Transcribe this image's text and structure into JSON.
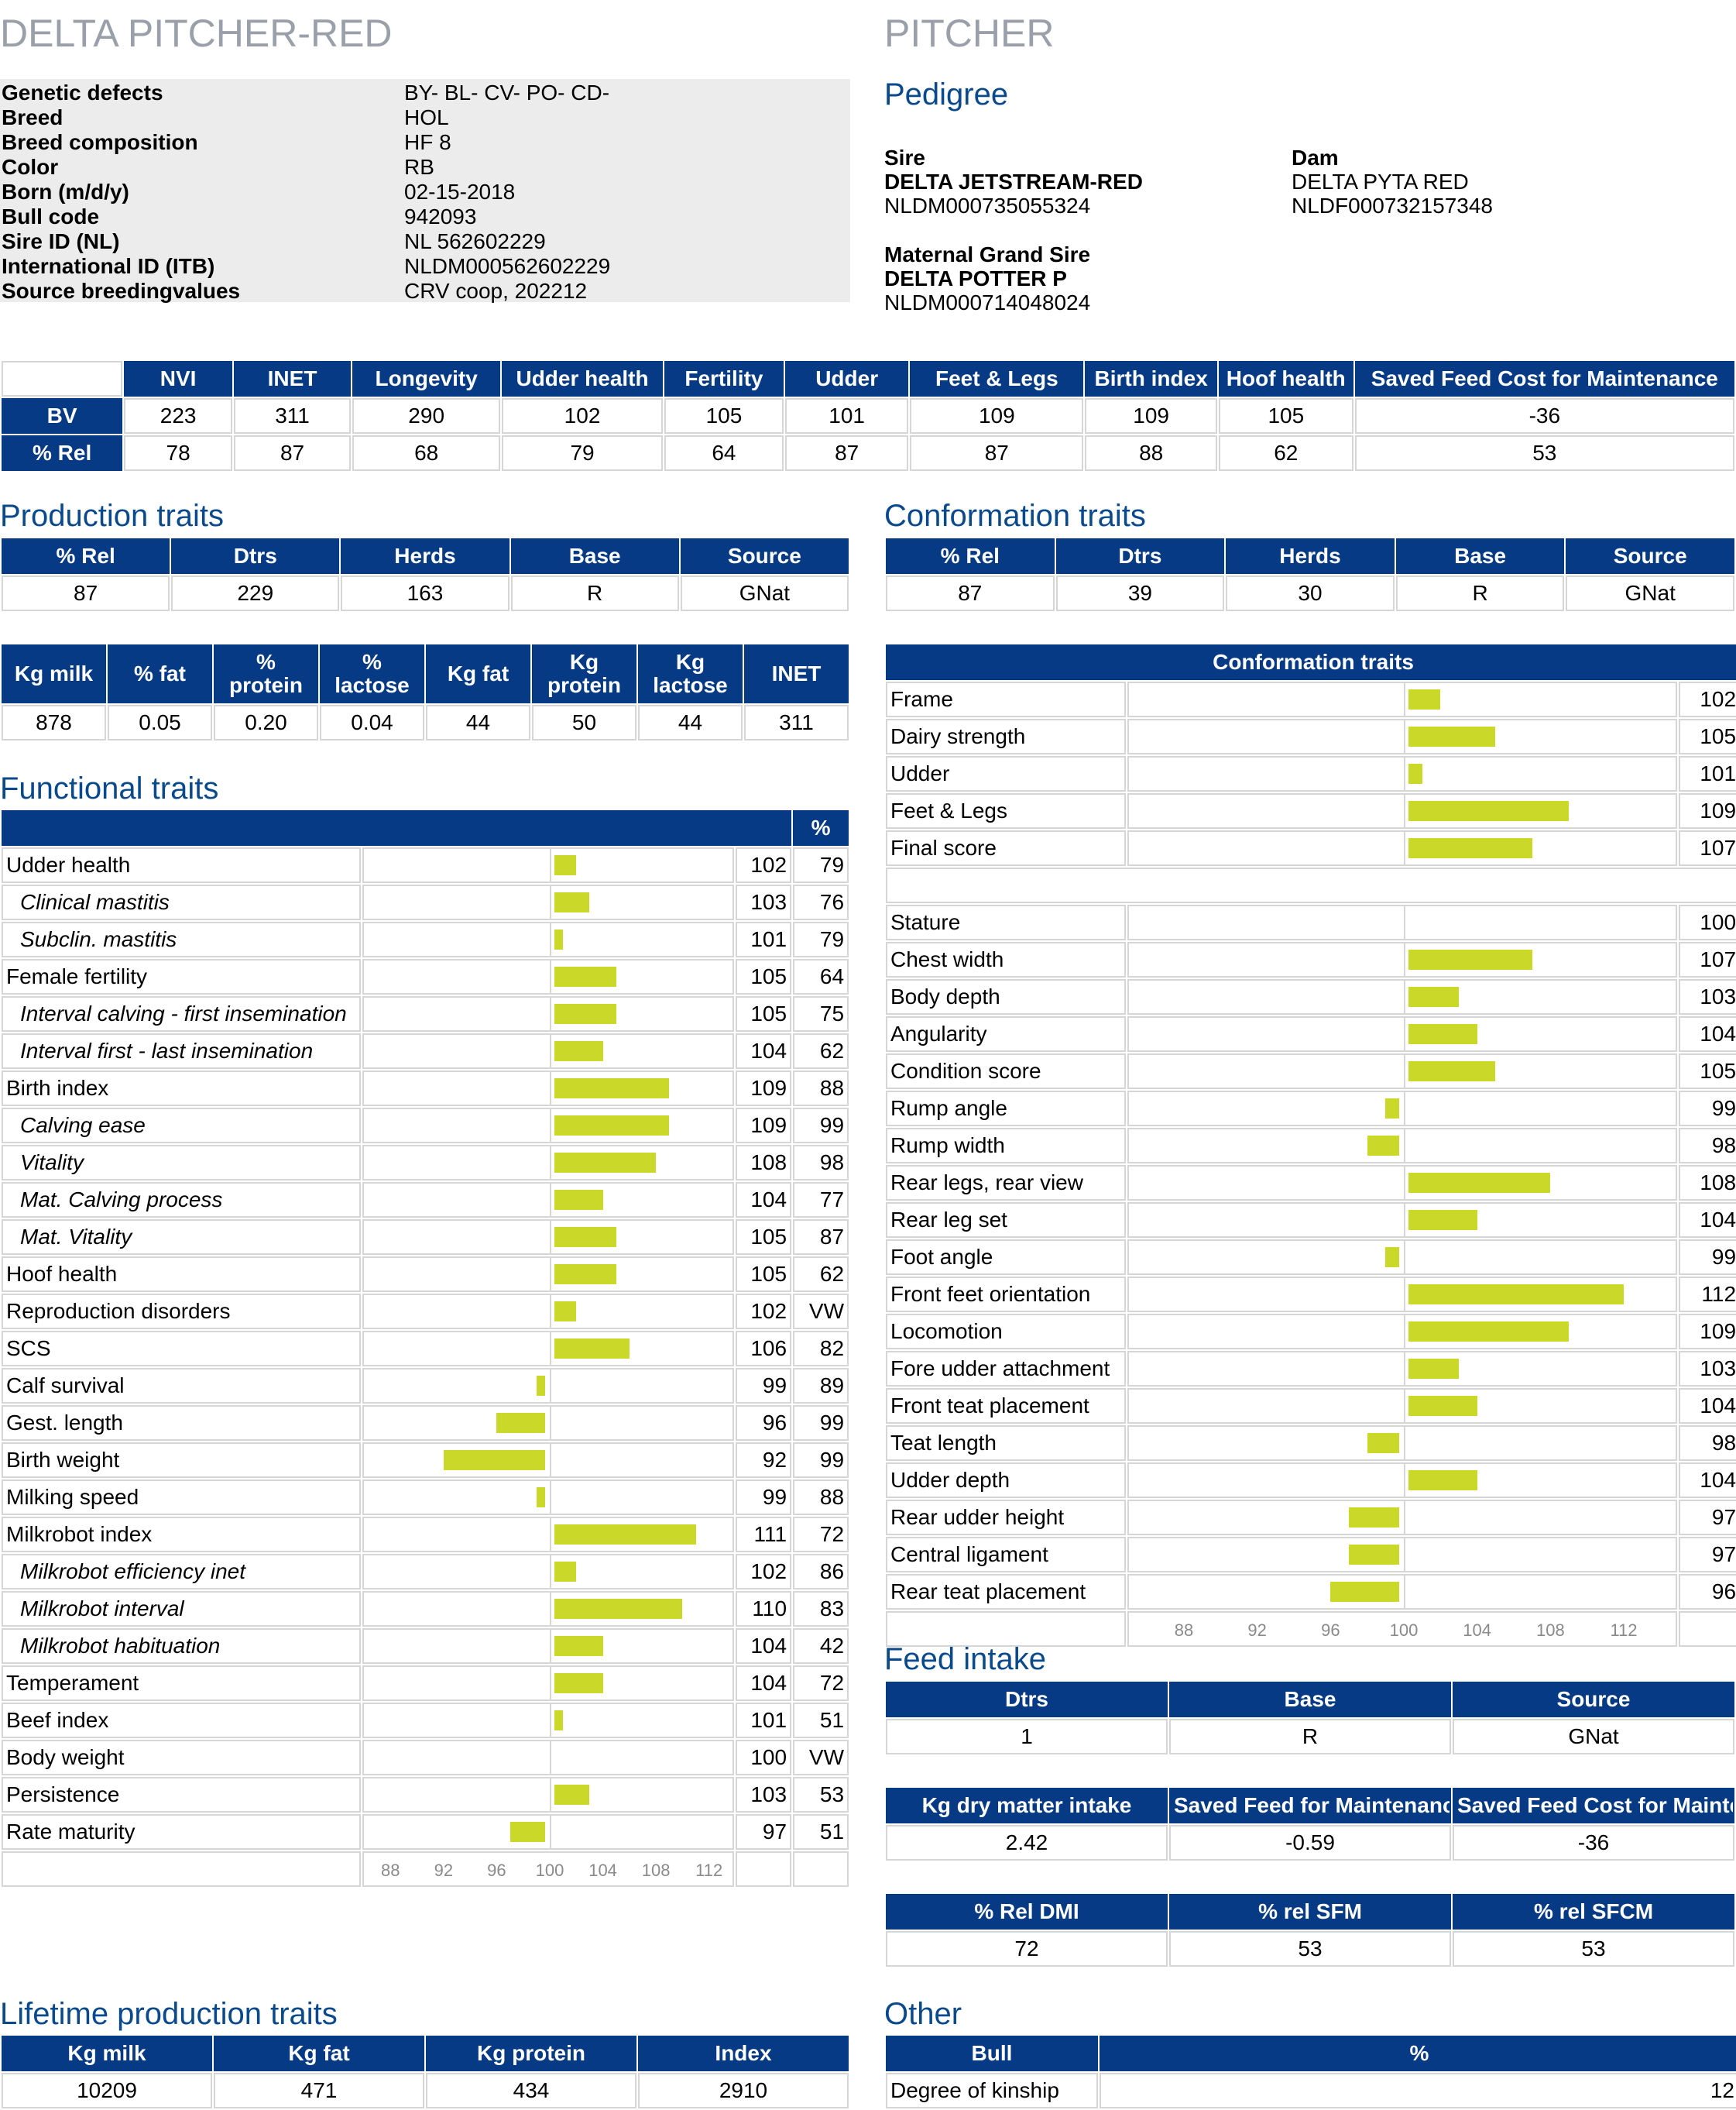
{
  "left_title": "DELTA PITCHER-RED",
  "right_title": "PITCHER",
  "info": [
    {
      "label": "Genetic defects",
      "value": "BY- BL- CV- PO- CD-"
    },
    {
      "label": "Breed",
      "value": "HOL"
    },
    {
      "label": "Breed composition",
      "value": "HF 8"
    },
    {
      "label": "Color",
      "value": "RB"
    },
    {
      "label": "Born (m/d/y)",
      "value": "02-15-2018"
    },
    {
      "label": "Bull code",
      "value": "942093"
    },
    {
      "label": "Sire ID (NL)",
      "value": "NL 562602229"
    },
    {
      "label": "International ID (ITB)",
      "value": "NLDM000562602229"
    },
    {
      "label": "Source breedingvalues",
      "value": "CRV coop, 202212"
    }
  ],
  "pedigree": {
    "title": "Pedigree",
    "sire_label": "Sire",
    "sire_name": "DELTA JETSTREAM-RED",
    "sire_id": "NLDM000735055324",
    "dam_label": "Dam",
    "dam_name": "DELTA PYTA RED",
    "dam_id": "NLDF000732157348",
    "mgs_label": "Maternal Grand Sire",
    "mgs_name": "DELTA POTTER P",
    "mgs_id": "NLDM000714048024"
  },
  "summary": {
    "headers": [
      "NVI",
      "INET",
      "Longevity",
      "Udder health",
      "Fertility",
      "Udder",
      "Feet & Legs",
      "Birth index",
      "Hoof health",
      "Saved Feed Cost for Maintenance"
    ],
    "rows": [
      {
        "label": "BV",
        "values": [
          "223",
          "311",
          "290",
          "102",
          "105",
          "101",
          "109",
          "109",
          "105",
          "-36"
        ]
      },
      {
        "label": "% Rel",
        "values": [
          "78",
          "87",
          "68",
          "79",
          "64",
          "87",
          "87",
          "88",
          "62",
          "53"
        ]
      }
    ]
  },
  "production": {
    "title": "Production traits",
    "headers": [
      "% Rel",
      "Dtrs",
      "Herds",
      "Base",
      "Source"
    ],
    "values": [
      "87",
      "229",
      "163",
      "R",
      "GNat"
    ],
    "detail_headers": [
      [
        "Kg milk"
      ],
      [
        "% fat"
      ],
      [
        "%",
        "protein"
      ],
      [
        "%",
        "lactose"
      ],
      [
        "Kg fat"
      ],
      [
        "Kg",
        "protein"
      ],
      [
        "Kg",
        "lactose"
      ],
      [
        "INET"
      ]
    ],
    "detail_values": [
      "878",
      "0.05",
      "0.20",
      "0.04",
      "44",
      "50",
      "44",
      "311"
    ]
  },
  "conformation": {
    "title": "Conformation traits",
    "headers": [
      "% Rel",
      "Dtrs",
      "Herds",
      "Base",
      "Source"
    ],
    "values": [
      "87",
      "39",
      "30",
      "R",
      "GNat"
    ],
    "chart_title": "Conformation traits"
  },
  "functional": {
    "title": "Functional traits",
    "pct_header": "%"
  },
  "chart_data": [
    {
      "type": "bar",
      "title": "Functional traits",
      "xlim": [
        86,
        114
      ],
      "baseline": 100,
      "ticks": [
        "88",
        "92",
        "96",
        "100",
        "104",
        "108",
        "112"
      ],
      "rows": [
        {
          "label": "Udder health",
          "value": 102,
          "pct": "79",
          "sub": false
        },
        {
          "label": "Clinical mastitis",
          "value": 103,
          "pct": "76",
          "sub": true
        },
        {
          "label": "Subclin. mastitis",
          "value": 101,
          "pct": "79",
          "sub": true
        },
        {
          "label": "Female fertility",
          "value": 105,
          "pct": "64",
          "sub": false
        },
        {
          "label": "Interval calving - first insemination",
          "value": 105,
          "pct": "75",
          "sub": true
        },
        {
          "label": "Interval first - last insemination",
          "value": 104,
          "pct": "62",
          "sub": true
        },
        {
          "label": "Birth index",
          "value": 109,
          "pct": "88",
          "sub": false
        },
        {
          "label": "Calving ease",
          "value": 109,
          "pct": "99",
          "sub": true
        },
        {
          "label": "Vitality",
          "value": 108,
          "pct": "98",
          "sub": true
        },
        {
          "label": "Mat. Calving process",
          "value": 104,
          "pct": "77",
          "sub": true
        },
        {
          "label": "Mat. Vitality",
          "value": 105,
          "pct": "87",
          "sub": true
        },
        {
          "label": "Hoof health",
          "value": 105,
          "pct": "62",
          "sub": false
        },
        {
          "label": "Reproduction disorders",
          "value": 102,
          "pct": "VW",
          "sub": false
        },
        {
          "label": "SCS",
          "value": 106,
          "pct": "82",
          "sub": false
        },
        {
          "label": "Calf survival",
          "value": 99,
          "pct": "89",
          "sub": false
        },
        {
          "label": "Gest. length",
          "value": 96,
          "pct": "99",
          "sub": false
        },
        {
          "label": "Birth weight",
          "value": 92,
          "pct": "99",
          "sub": false
        },
        {
          "label": "Milking speed",
          "value": 99,
          "pct": "88",
          "sub": false
        },
        {
          "label": "Milkrobot index",
          "value": 111,
          "pct": "72",
          "sub": false
        },
        {
          "label": "Milkrobot efficiency inet",
          "value": 102,
          "pct": "86",
          "sub": true
        },
        {
          "label": "Milkrobot interval",
          "value": 110,
          "pct": "83",
          "sub": true
        },
        {
          "label": "Milkrobot habituation",
          "value": 104,
          "pct": "42",
          "sub": true
        },
        {
          "label": "Temperament",
          "value": 104,
          "pct": "72",
          "sub": false
        },
        {
          "label": "Beef index",
          "value": 101,
          "pct": "51",
          "sub": false
        },
        {
          "label": "Body weight",
          "value": 100,
          "pct": "VW",
          "sub": false
        },
        {
          "label": "Persistence",
          "value": 103,
          "pct": "53",
          "sub": false
        },
        {
          "label": "Rate maturity",
          "value": 97,
          "pct": "51",
          "sub": false
        }
      ]
    },
    {
      "type": "bar",
      "title": "Conformation traits",
      "xlim": [
        85,
        115
      ],
      "baseline": 100,
      "ticks": [
        "88",
        "92",
        "96",
        "100",
        "104",
        "108",
        "112"
      ],
      "rows": [
        {
          "label": "Frame",
          "value": 102
        },
        {
          "label": "Dairy strength",
          "value": 105
        },
        {
          "label": "Udder",
          "value": 101
        },
        {
          "label": "Feet & Legs",
          "value": 109
        },
        {
          "label": "Final score",
          "value": 107
        },
        {
          "label": "",
          "value": null,
          "spacer": true
        },
        {
          "label": "Stature",
          "value": 100
        },
        {
          "label": "Chest width",
          "value": 107
        },
        {
          "label": "Body depth",
          "value": 103
        },
        {
          "label": "Angularity",
          "value": 104
        },
        {
          "label": "Condition score",
          "value": 105
        },
        {
          "label": "Rump angle",
          "value": 99
        },
        {
          "label": "Rump width",
          "value": 98
        },
        {
          "label": "Rear legs, rear view",
          "value": 108
        },
        {
          "label": "Rear leg set",
          "value": 104
        },
        {
          "label": "Foot angle",
          "value": 99
        },
        {
          "label": "Front feet orientation",
          "value": 112
        },
        {
          "label": "Locomotion",
          "value": 109
        },
        {
          "label": "Fore udder attachment",
          "value": 103
        },
        {
          "label": "Front teat placement",
          "value": 104
        },
        {
          "label": "Teat length",
          "value": 98
        },
        {
          "label": "Udder depth",
          "value": 104
        },
        {
          "label": "Rear udder height",
          "value": 97
        },
        {
          "label": "Central ligament",
          "value": 97
        },
        {
          "label": "Rear teat placement",
          "value": 96
        }
      ]
    }
  ],
  "feed": {
    "title": "Feed intake",
    "headers": [
      "Dtrs",
      "Base",
      "Source"
    ],
    "values": [
      "1",
      "R",
      "GNat"
    ],
    "headers2": [
      "Kg dry matter intake",
      "Saved Feed for Maintenance",
      "Saved Feed Cost for Maintenance"
    ],
    "values2": [
      "2.42",
      "-0.59",
      "-36"
    ],
    "headers3": [
      "% Rel DMI",
      "% rel SFM",
      "% rel SFCM"
    ],
    "values3": [
      "72",
      "53",
      "53"
    ]
  },
  "lifetime": {
    "title": "Lifetime production traits",
    "headers": [
      "Kg milk",
      "Kg fat",
      "Kg protein",
      "Index"
    ],
    "values": [
      "10209",
      "471",
      "434",
      "2910"
    ]
  },
  "other": {
    "title": "Other",
    "headers": [
      "Bull",
      "%"
    ],
    "row_label": "Degree of kinship",
    "row_value": "12"
  }
}
